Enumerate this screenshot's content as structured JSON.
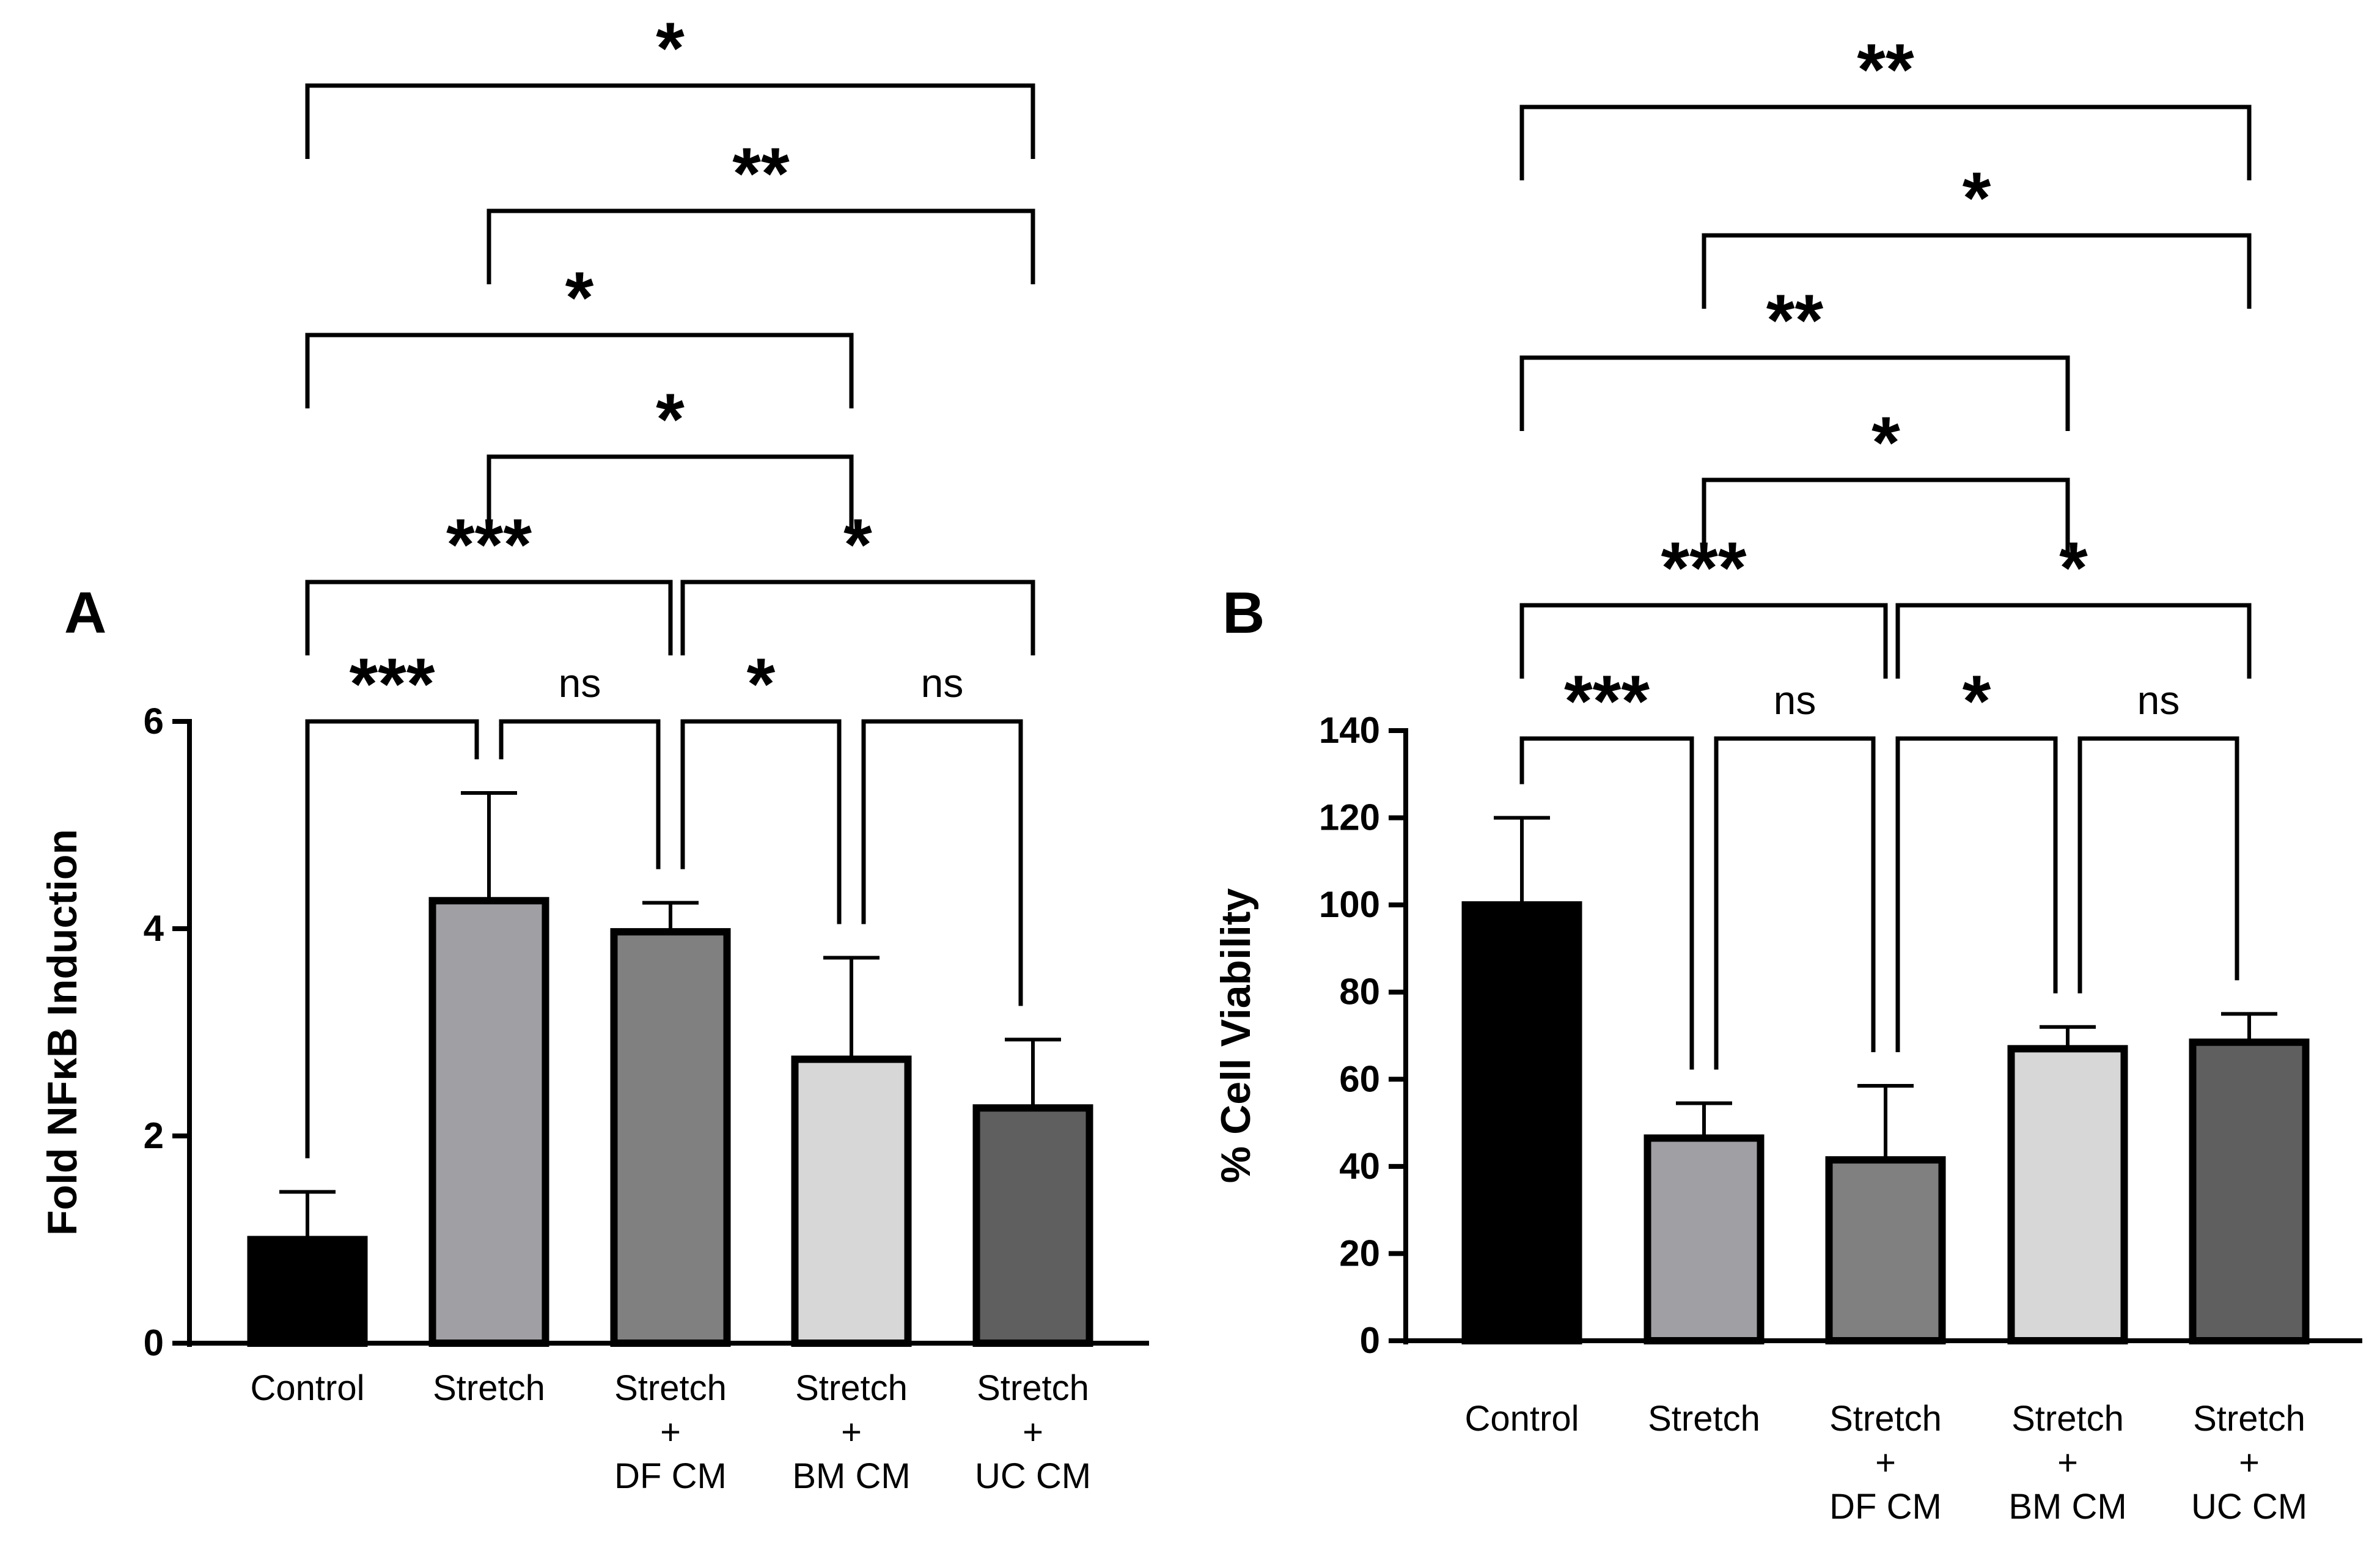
{
  "chart_data": [
    {
      "type": "bar",
      "panel": "A",
      "title": "",
      "xlabel": "",
      "ylabel": "Fold NFκB Induction",
      "ylim": [
        0,
        6
      ],
      "yticks": [
        0,
        2,
        4,
        6
      ],
      "categories": [
        [
          "Control"
        ],
        [
          "Stretch"
        ],
        [
          "Stretch",
          "+",
          "DF CM"
        ],
        [
          "Stretch",
          "+",
          "BM CM"
        ],
        [
          "Stretch",
          "+",
          "UC CM"
        ]
      ],
      "values": [
        1.0,
        4.27,
        3.97,
        2.74,
        2.27
      ],
      "errors": [
        0.46,
        1.04,
        0.28,
        0.98,
        0.66
      ],
      "colors": [
        "#000000",
        "#a0a0a4",
        "#808080",
        "#d7d7d7",
        "#5f5f5f"
      ],
      "comparisons": [
        {
          "from": 0,
          "to": 1,
          "label": "***"
        },
        {
          "from": 1,
          "to": 2,
          "label": "ns"
        },
        {
          "from": 2,
          "to": 3,
          "label": "*"
        },
        {
          "from": 3,
          "to": 4,
          "label": "ns"
        },
        {
          "from": 0,
          "to": 2,
          "label": "***"
        },
        {
          "from": 2,
          "to": 4,
          "label": "*"
        },
        {
          "from": 1,
          "to": 3,
          "label": "*"
        },
        {
          "from": 0,
          "to": 3,
          "label": "*"
        },
        {
          "from": 1,
          "to": 4,
          "label": "**"
        },
        {
          "from": 0,
          "to": 4,
          "label": "*"
        }
      ]
    },
    {
      "type": "bar",
      "panel": "B",
      "title": "",
      "xlabel": "",
      "ylabel": "% Cell Viability",
      "ylim": [
        0,
        140
      ],
      "yticks": [
        0,
        20,
        40,
        60,
        80,
        100,
        120,
        140
      ],
      "categories": [
        [
          "Control"
        ],
        [
          "Stretch"
        ],
        [
          "Stretch",
          "+",
          "DF CM"
        ],
        [
          "Stretch",
          "+",
          "BM CM"
        ],
        [
          "Stretch",
          "+",
          "UC CM"
        ]
      ],
      "values": [
        100,
        46.5,
        41.5,
        67,
        68.5
      ],
      "errors": [
        20,
        8,
        17,
        5,
        6.5
      ],
      "colors": [
        "#000000",
        "#a0a0a4",
        "#808080",
        "#d7d7d7",
        "#5f5f5f"
      ],
      "comparisons": [
        {
          "from": 0,
          "to": 1,
          "label": "***"
        },
        {
          "from": 1,
          "to": 2,
          "label": "ns"
        },
        {
          "from": 2,
          "to": 3,
          "label": "*"
        },
        {
          "from": 3,
          "to": 4,
          "label": "ns"
        },
        {
          "from": 0,
          "to": 2,
          "label": "***"
        },
        {
          "from": 2,
          "to": 4,
          "label": "*"
        },
        {
          "from": 1,
          "to": 3,
          "label": "*"
        },
        {
          "from": 0,
          "to": 3,
          "label": "**"
        },
        {
          "from": 1,
          "to": 4,
          "label": "*"
        },
        {
          "from": 0,
          "to": 4,
          "label": "**"
        }
      ]
    }
  ]
}
